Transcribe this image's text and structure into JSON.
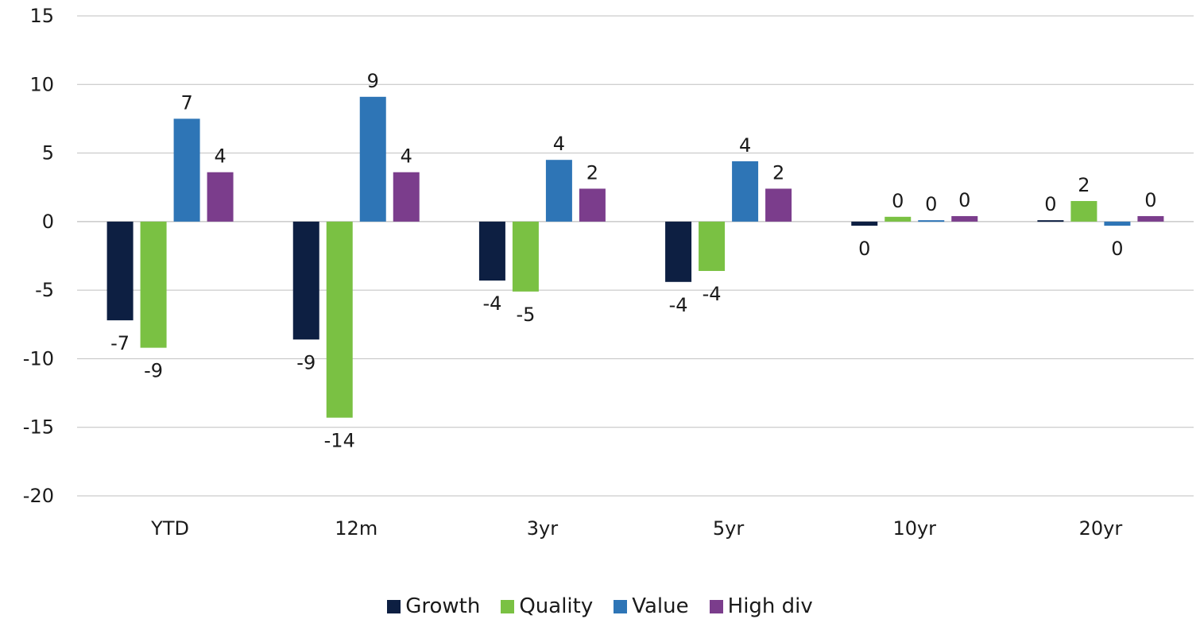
{
  "chart_data": {
    "type": "bar",
    "categories": [
      "YTD",
      "12m",
      "3yr",
      "5yr",
      "10yr",
      "20yr"
    ],
    "series": [
      {
        "name": "Growth",
        "color": "#0d1f42",
        "values": [
          -7.2,
          -8.6,
          -4.3,
          -4.4,
          -0.3,
          0.1
        ]
      },
      {
        "name": "Quality",
        "color": "#7ac143",
        "values": [
          -9.2,
          -14.3,
          -5.1,
          -3.6,
          0.35,
          1.5
        ]
      },
      {
        "name": "Value",
        "color": "#2e75b6",
        "values": [
          7.5,
          9.1,
          4.5,
          4.4,
          0.1,
          -0.3
        ]
      },
      {
        "name": "High div",
        "color": "#7b3d8c",
        "values": [
          3.6,
          3.6,
          2.4,
          2.4,
          0.4,
          0.4
        ]
      }
    ],
    "data_labels": [
      [
        "-7",
        "-9",
        "-4",
        "-4",
        "0",
        "0"
      ],
      [
        "-9",
        "-14",
        "-5",
        "-4",
        "0",
        "2"
      ],
      [
        "7",
        "9",
        "4",
        "4",
        "0",
        "0"
      ],
      [
        "4",
        "4",
        "2",
        "2",
        "0",
        "0"
      ]
    ],
    "ylim": [
      -20,
      15
    ],
    "yticks": [
      15,
      10,
      5,
      0,
      -5,
      -10,
      -15,
      -20
    ],
    "ytick_labels": [
      "15",
      "10",
      "5",
      "0",
      "-5",
      "-10",
      "-15",
      "-20"
    ],
    "grid": true,
    "legend_position": "bottom",
    "title": "",
    "xlabel": "",
    "ylabel": ""
  }
}
